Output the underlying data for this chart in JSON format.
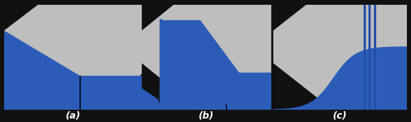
{
  "fig_width": 6.0,
  "fig_height": 1.79,
  "dpi": 100,
  "background_color": "#111111",
  "gray_color": "#bebebe",
  "blue_color": "#2b5cb8",
  "label_a": "(a)",
  "label_b": "(b)",
  "label_c": "(c)",
  "label_fontsize": 10
}
